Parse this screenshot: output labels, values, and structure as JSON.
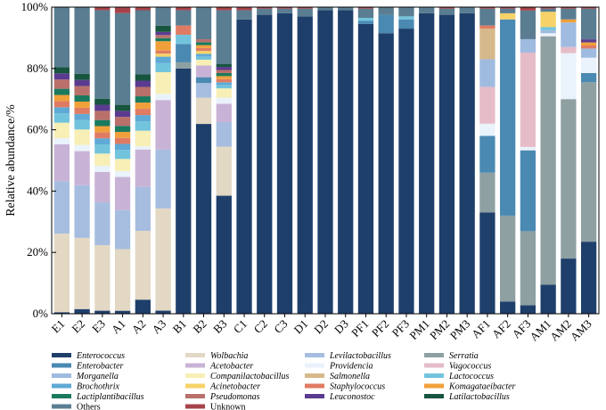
{
  "chart_data": {
    "type": "bar",
    "stacked": true,
    "ylabel": "Relative abundance/%",
    "xlabel": "",
    "ylim": [
      0,
      100
    ],
    "yticks": [
      "0%",
      "20%",
      "40%",
      "60%",
      "80%",
      "100%"
    ],
    "categories": [
      "E1",
      "E2",
      "E3",
      "A1",
      "A2",
      "A3",
      "B1",
      "B2",
      "B3",
      "C1",
      "C2",
      "C3",
      "D1",
      "D2",
      "D3",
      "PF1",
      "PF2",
      "PF3",
      "PM1",
      "PM2",
      "PM3",
      "AF1",
      "AF2",
      "AF3",
      "AM1",
      "AM2",
      "AM3"
    ],
    "series": [
      {
        "name": "Enterococcus",
        "color": "#1f3f6b",
        "values": [
          0.5,
          1.5,
          1,
          1,
          4.5,
          1,
          80,
          65,
          38.5,
          96,
          97.5,
          98,
          97,
          99,
          99,
          94.5,
          91.5,
          93,
          98,
          97.5,
          98,
          33,
          4,
          2.5,
          9.5,
          18,
          23.5
        ]
      },
      {
        "name": "Wolbachia",
        "color": "#e2d8c4",
        "values": [
          25.5,
          23,
          21.5,
          20.5,
          22,
          33,
          0,
          9,
          16,
          0,
          0,
          0,
          0,
          0,
          0,
          0,
          0,
          0,
          0,
          0,
          0,
          0,
          0,
          0,
          0,
          0,
          0
        ]
      },
      {
        "name": "Levilactobacillus",
        "color": "#a6bde0",
        "values": [
          17,
          17,
          14,
          13,
          14,
          19,
          0,
          5,
          8,
          0,
          0,
          0,
          0,
          0,
          0,
          0,
          0,
          0,
          0,
          0,
          0,
          0,
          0,
          0,
          0,
          0,
          0
        ]
      },
      {
        "name": "Serratia",
        "color": "#8ea0a2",
        "values": [
          0,
          0,
          0,
          0,
          0,
          0,
          2,
          0,
          0,
          0,
          0,
          0,
          0,
          0,
          0,
          0,
          0,
          0,
          0,
          0,
          0,
          13,
          28,
          22,
          81,
          52,
          52
        ]
      },
      {
        "name": "Enterobacter",
        "color": "#4a89b2",
        "values": [
          0,
          0,
          0,
          0,
          0,
          0,
          6,
          2,
          0,
          0,
          0,
          0,
          0,
          0,
          0,
          1,
          6,
          3,
          0,
          0,
          0,
          12,
          64,
          24,
          0,
          0,
          3
        ]
      },
      {
        "name": "Acetobacter",
        "color": "#c8b3d6",
        "values": [
          12,
          11,
          10,
          11,
          12,
          16,
          0,
          4,
          6,
          0,
          0,
          0,
          0,
          0,
          0,
          0,
          0,
          0,
          0,
          0,
          0,
          0,
          0,
          0,
          0,
          0,
          0
        ]
      },
      {
        "name": "Providencia",
        "color": "#eaf2fb",
        "values": [
          2,
          2,
          2,
          2,
          1,
          2,
          0,
          0,
          2,
          0,
          0,
          0,
          0,
          0,
          0,
          0,
          0,
          0,
          0,
          0,
          0,
          4,
          0,
          1,
          1,
          15,
          5
        ]
      },
      {
        "name": "Vagococcus",
        "color": "#e6bcc9",
        "values": [
          0,
          0,
          0,
          0,
          0,
          0,
          0,
          0,
          0,
          0,
          0,
          0,
          0,
          0,
          0,
          0,
          0,
          0,
          0,
          0,
          0,
          12,
          0,
          28,
          0,
          2,
          0
        ]
      },
      {
        "name": "Morganella",
        "color": "#9fbbe0",
        "values": [
          0,
          0,
          0,
          0,
          0,
          0,
          0,
          0,
          0,
          0,
          0,
          0,
          0,
          0,
          0,
          0,
          0,
          0,
          0,
          0,
          0,
          9,
          0,
          4,
          1,
          8,
          3
        ]
      },
      {
        "name": "Companilactobacillus",
        "color": "#f7efb5",
        "values": [
          5,
          5,
          4,
          4,
          5,
          7,
          0,
          2,
          3,
          0,
          0,
          0,
          0,
          0,
          0,
          0,
          0,
          0,
          0,
          0,
          0,
          0,
          0,
          0,
          0,
          0,
          0
        ]
      },
      {
        "name": "Salmonella",
        "color": "#d6b98b",
        "values": [
          0,
          0,
          0,
          0,
          0,
          0,
          0,
          0,
          0,
          0,
          0,
          0,
          0,
          0,
          0,
          0,
          0,
          0,
          0,
          0,
          0,
          10,
          0,
          0,
          0,
          0,
          0
        ]
      },
      {
        "name": "Lactococcus",
        "color": "#72c3dc",
        "values": [
          3,
          3,
          3,
          3,
          3,
          3,
          3,
          1,
          1,
          0,
          0,
          0,
          0,
          0,
          0,
          1,
          0,
          1,
          0,
          0,
          0,
          0,
          0,
          0,
          1,
          0,
          0
        ]
      },
      {
        "name": "Brochothrix",
        "color": "#5fa9d6",
        "values": [
          2,
          2,
          2,
          2,
          2,
          2,
          0,
          1,
          1,
          0,
          0,
          0,
          0,
          0,
          0,
          0,
          0,
          0,
          0,
          0,
          0,
          0,
          0,
          0,
          0,
          0,
          0
        ]
      },
      {
        "name": "Acinetobacter",
        "color": "#f6d268",
        "values": [
          0,
          0,
          0,
          0,
          0,
          1,
          0,
          1,
          0,
          0,
          0,
          0,
          0,
          0,
          0,
          0,
          0,
          0,
          0,
          0,
          0,
          0,
          2,
          0,
          5,
          0,
          0
        ]
      },
      {
        "name": "Staphylococcus",
        "color": "#e07b63",
        "values": [
          2,
          2,
          2,
          2,
          2,
          1,
          3,
          1,
          1,
          0,
          0,
          0,
          0,
          0,
          0,
          0,
          0,
          0,
          0,
          0,
          0,
          1,
          0,
          0,
          0,
          0,
          1
        ]
      },
      {
        "name": "Komagataeibacter",
        "color": "#f0a03a",
        "values": [
          2,
          2,
          2,
          2,
          2,
          3,
          0,
          1,
          1,
          0,
          0,
          0,
          0,
          0,
          0,
          0,
          0,
          0,
          0,
          0,
          0,
          0,
          0,
          0,
          0,
          1,
          1
        ]
      },
      {
        "name": "Lactiplantibacillus",
        "color": "#1a7a5e",
        "values": [
          2,
          2,
          2,
          2,
          2,
          1,
          0,
          1,
          1,
          0,
          0,
          0,
          0,
          0,
          0,
          0,
          0,
          0,
          0,
          0,
          0,
          0,
          0,
          0,
          0,
          0,
          0
        ]
      },
      {
        "name": "Pseudomonas",
        "color": "#b9706b",
        "values": [
          3,
          3,
          3,
          3,
          3,
          1,
          0,
          1,
          1,
          0,
          0,
          0,
          0,
          0,
          0,
          0,
          0,
          0,
          0,
          0,
          0,
          0,
          0,
          0,
          0,
          0,
          0
        ]
      },
      {
        "name": "Leuconostoc",
        "color": "#5b3b8f",
        "values": [
          2,
          2,
          2,
          2,
          2,
          1,
          0,
          0,
          1,
          0,
          0,
          0,
          0,
          0,
          0,
          0,
          0,
          0,
          0,
          0,
          0,
          0,
          0,
          0,
          0,
          0,
          1
        ]
      },
      {
        "name": "Latilactobacillus",
        "color": "#17553e",
        "values": [
          2,
          2,
          2,
          2,
          2,
          2,
          0,
          0,
          1,
          0,
          0,
          0,
          0,
          0,
          0,
          0,
          0,
          0,
          0,
          0,
          0,
          0,
          0,
          0,
          0,
          0,
          0
        ]
      },
      {
        "name": "Others",
        "color": "#5a7d91",
        "values": [
          19.5,
          21.5,
          29,
          30.5,
          20.5,
          6,
          5,
          11,
          17.5,
          3,
          2,
          1.5,
          2.5,
          1,
          1,
          3,
          2.5,
          3,
          2,
          2,
          2,
          5.5,
          1.5,
          8.5,
          1,
          3.5,
          10
        ]
      },
      {
        "name": "Unknown",
        "color": "#a6434a",
        "values": [
          0,
          0,
          1,
          2,
          1,
          0,
          1,
          0,
          1,
          1,
          0.5,
          0.5,
          0.5,
          0,
          0,
          0.5,
          0,
          0,
          0,
          0.5,
          0,
          0.5,
          0.5,
          1,
          0.5,
          0.5,
          0.5
        ]
      }
    ],
    "legend_order": [
      "Enterococcus",
      "Enterobacter",
      "Morganella",
      "Brochothrix",
      "Lactiplantibacillus",
      "Others",
      "Wolbachia",
      "Acetobacter",
      "Companilactobacillus",
      "Acinetobacter",
      "Pseudomonas",
      "Unknown",
      "Levilactobacillus",
      "Providencia",
      "Salmonella",
      "Staphylococcus",
      "Leuconostoc",
      "Serratia",
      "Vagococcus",
      "Lactococcus",
      "Komagataeibacter",
      "Latilactobacillus"
    ],
    "legend_position": "bottom"
  }
}
